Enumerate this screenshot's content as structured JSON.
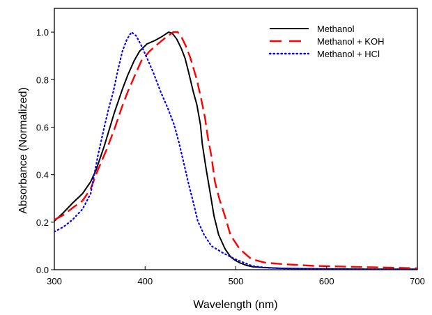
{
  "chart_data": {
    "type": "line",
    "title": "",
    "xlabel": "Wavelength (nm)",
    "ylabel": "Absorbance (Normalized)",
    "xlim": [
      300,
      700
    ],
    "ylim": [
      0,
      1.1
    ],
    "xticks": [
      300,
      400,
      500,
      600,
      700
    ],
    "xtick_labels": [
      "300",
      "400",
      "500",
      "600",
      "700"
    ],
    "yticks": [
      0,
      0.2,
      0.4,
      0.6,
      0.8,
      1.0
    ],
    "ytick_labels": [
      "0.0",
      "0.2",
      "0.4",
      "0.6",
      "0.8",
      "1.0"
    ],
    "grid": false,
    "legend_position": "top-right",
    "series": [
      {
        "name": "Methanol",
        "color": "#000000",
        "style": "solid",
        "x": [
          300,
          310,
          320,
          331,
          340,
          346,
          355,
          366,
          375,
          381,
          388,
          394,
          402,
          411,
          418,
          426,
          430,
          435,
          440,
          444,
          448,
          453,
          457,
          461,
          463,
          467,
          471,
          476,
          481,
          488,
          494,
          499,
          505,
          512,
          519,
          530,
          550,
          580,
          620,
          660,
          700
        ],
        "y": [
          0.205,
          0.24,
          0.28,
          0.32,
          0.37,
          0.42,
          0.52,
          0.66,
          0.76,
          0.82,
          0.88,
          0.92,
          0.95,
          0.965,
          0.98,
          1.0,
          0.995,
          0.97,
          0.93,
          0.89,
          0.83,
          0.75,
          0.695,
          0.61,
          0.53,
          0.43,
          0.34,
          0.225,
          0.147,
          0.088,
          0.055,
          0.04,
          0.028,
          0.018,
          0.012,
          0.009,
          0.006,
          0.004,
          0.003,
          0.002,
          0.002
        ]
      },
      {
        "name": "Methanol + KOH",
        "color": "#ff0000",
        "style": "dashed",
        "x": [
          300,
          310,
          320,
          331,
          340,
          348,
          357,
          366,
          374,
          381,
          389,
          396,
          405,
          414,
          422,
          431,
          436,
          440,
          445,
          450,
          457,
          462,
          466,
          469,
          473,
          477,
          482,
          488,
          494,
          504,
          517,
          532,
          550,
          586,
          620,
          655,
          700
        ],
        "y": [
          0.21,
          0.23,
          0.26,
          0.29,
          0.34,
          0.42,
          0.5,
          0.59,
          0.68,
          0.75,
          0.82,
          0.88,
          0.92,
          0.95,
          0.975,
          1.0,
          1.0,
          0.98,
          0.94,
          0.89,
          0.8,
          0.715,
          0.64,
          0.56,
          0.48,
          0.37,
          0.295,
          0.225,
          0.147,
          0.088,
          0.045,
          0.03,
          0.024,
          0.016,
          0.013,
          0.01,
          0.006
        ]
      },
      {
        "name": "Methanol + HCl",
        "color": "#0000ff",
        "style": "dotted",
        "x": [
          300,
          310,
          320,
          331,
          340,
          348,
          355,
          360,
          365,
          370,
          375,
          380,
          385,
          390,
          395,
          401,
          409,
          417,
          425,
          432,
          437,
          441,
          448,
          453,
          458,
          465,
          473,
          486,
          499,
          510,
          519,
          535,
          560,
          600,
          650,
          700
        ],
        "y": [
          0.16,
          0.18,
          0.21,
          0.255,
          0.32,
          0.48,
          0.6,
          0.68,
          0.75,
          0.84,
          0.92,
          0.97,
          1.0,
          0.985,
          0.95,
          0.9,
          0.83,
          0.75,
          0.68,
          0.61,
          0.54,
          0.475,
          0.36,
          0.285,
          0.205,
          0.147,
          0.1,
          0.07,
          0.045,
          0.028,
          0.015,
          0.008,
          0.004,
          0.002,
          0.001,
          0.001
        ]
      }
    ]
  }
}
